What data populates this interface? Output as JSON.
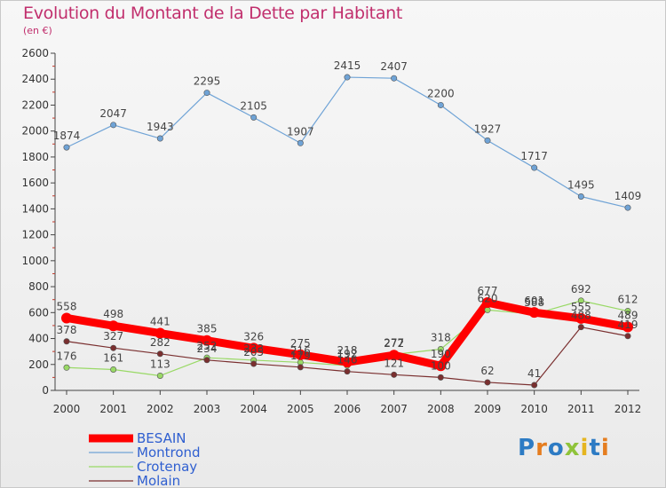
{
  "title": "Evolution du Montant de la Dette par Habitant",
  "subtitle": "(en €)",
  "logo": "Proxiti",
  "logo_colors": [
    "#2d7bc4",
    "#e57d1f",
    "#2d7bc4",
    "#8fc33a",
    "#e5b51f",
    "#2d7bc4",
    "#e57d1f"
  ],
  "chart_data": {
    "type": "line",
    "title": "Evolution du Montant de la Dette par Habitant",
    "ylabel": "(en €)",
    "x": [
      "2000",
      "2001",
      "2002",
      "2003",
      "2004",
      "2005",
      "2006",
      "2007",
      "2008",
      "2009",
      "2010",
      "2011",
      "2012"
    ],
    "ylim": [
      0,
      2600
    ],
    "yticks": [
      0,
      200,
      400,
      600,
      800,
      1000,
      1200,
      1400,
      1600,
      1800,
      2000,
      2200,
      2400,
      2600
    ],
    "grid": false,
    "legend_position": "bottom-left",
    "series": [
      {
        "name": "BESAIN",
        "color": "#ff0000",
        "values": [
          558,
          498,
          441,
          385,
          326,
          275,
          218,
          272,
          190,
          677,
          601,
          555,
          489
        ],
        "labels": [
          "558",
          "498",
          "441",
          "385",
          "326",
          "275",
          "218",
          "272",
          "190",
          "677",
          "601",
          "555",
          "489"
        ]
      },
      {
        "name": "Montrond",
        "color": "#6fa3d6",
        "values": [
          1874,
          2047,
          1943,
          2295,
          2105,
          1907,
          2415,
          2407,
          2200,
          1927,
          1717,
          1495,
          1409
        ],
        "labels": [
          "1874",
          "2047",
          "1943",
          "2295",
          "2105",
          "1907",
          "2415",
          "2407",
          "2200",
          "1927",
          "1717",
          "1495",
          "1409"
        ]
      },
      {
        "name": "Crotenay",
        "color": "#99d966",
        "values": [
          176,
          161,
          113,
          252,
          233,
          216,
          192,
          277,
          318,
          620,
          588,
          692,
          612
        ],
        "labels": [
          "176",
          "161",
          "113",
          "252",
          "233",
          "216",
          "192",
          "277",
          "318",
          "620",
          "588",
          "692",
          "612"
        ]
      },
      {
        "name": "Molain",
        "color": "#7a2f2f",
        "values": [
          378,
          327,
          282,
          234,
          205,
          179,
          146,
          121,
          100,
          62,
          41,
          488,
          419
        ],
        "labels": [
          "378",
          "327",
          "282",
          "234",
          "205",
          "179",
          "146",
          "121",
          "100",
          "62",
          "41",
          "488",
          "419"
        ]
      }
    ]
  }
}
